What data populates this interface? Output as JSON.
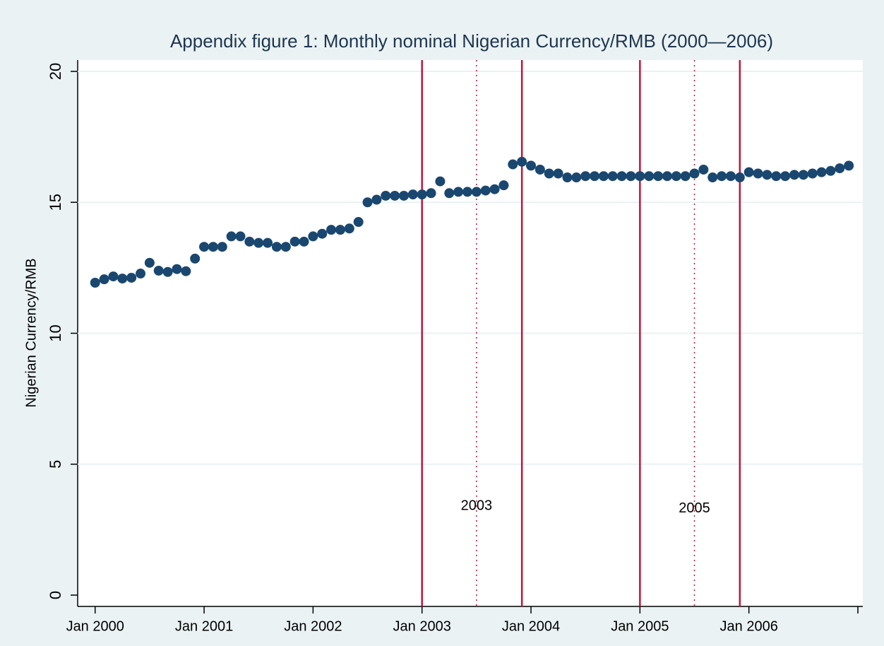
{
  "chart_data": {
    "type": "scatter",
    "title": "Appendix figure 1: Monthly nominal Nigerian Currency/RMB (2000—2006)",
    "y_label": "Nigerian Currency/RMB",
    "color": "#1a476f",
    "x": [
      "2000-01",
      "2000-02",
      "2000-03",
      "2000-04",
      "2000-05",
      "2000-06",
      "2000-07",
      "2000-08",
      "2000-09",
      "2000-10",
      "2000-11",
      "2000-12",
      "2001-01",
      "2001-02",
      "2001-03",
      "2001-04",
      "2001-05",
      "2001-06",
      "2001-07",
      "2001-08",
      "2001-09",
      "2001-10",
      "2001-11",
      "2001-12",
      "2002-01",
      "2002-02",
      "2002-03",
      "2002-04",
      "2002-05",
      "2002-06",
      "2002-07",
      "2002-08",
      "2002-09",
      "2002-10",
      "2002-11",
      "2002-12",
      "2003-01",
      "2003-02",
      "2003-03",
      "2003-04",
      "2003-05",
      "2003-06",
      "2003-07",
      "2003-08",
      "2003-09",
      "2003-10",
      "2003-11",
      "2003-12",
      "2004-01",
      "2004-02",
      "2004-03",
      "2004-04",
      "2004-05",
      "2004-06",
      "2004-07",
      "2004-08",
      "2004-09",
      "2004-10",
      "2004-11",
      "2004-12",
      "2005-01",
      "2005-02",
      "2005-03",
      "2005-04",
      "2005-05",
      "2005-06",
      "2005-07",
      "2005-08",
      "2005-09",
      "2005-10",
      "2005-11",
      "2005-12",
      "2006-01",
      "2006-02",
      "2006-03",
      "2006-04",
      "2006-05",
      "2006-06",
      "2006-07",
      "2006-08",
      "2006-09",
      "2006-10",
      "2006-11",
      "2006-12"
    ],
    "values": [
      11.93,
      12.06,
      12.17,
      12.09,
      12.12,
      12.28,
      12.69,
      12.39,
      12.34,
      12.45,
      12.37,
      12.85,
      13.3,
      13.3,
      13.3,
      13.7,
      13.7,
      13.5,
      13.45,
      13.45,
      13.3,
      13.3,
      13.5,
      13.5,
      13.7,
      13.8,
      13.95,
      13.95,
      14.0,
      14.25,
      15.0,
      15.1,
      15.25,
      15.25,
      15.25,
      15.3,
      15.3,
      15.35,
      15.8,
      15.35,
      15.4,
      15.4,
      15.4,
      15.45,
      15.5,
      15.65,
      16.45,
      16.55,
      16.4,
      16.25,
      16.1,
      16.1,
      15.95,
      15.95,
      16.0,
      16.0,
      16.0,
      16.0,
      16.0,
      16.0,
      16.0,
      16.0,
      16.0,
      16.0,
      16.0,
      16.0,
      16.1,
      16.25,
      15.95,
      16.0,
      16.0,
      15.95,
      16.15,
      16.1,
      16.05,
      16.0,
      16.0,
      16.05,
      16.05,
      16.1,
      16.15,
      16.2,
      16.3,
      16.4
    ],
    "xlim": [
      "1999-11",
      "2007-01"
    ],
    "xticks": [
      {
        "value": "2000-01",
        "label": "Jan 2000"
      },
      {
        "value": "2001-01",
        "label": "Jan 2001"
      },
      {
        "value": "2002-01",
        "label": "Jan 2002"
      },
      {
        "value": "2003-01",
        "label": "Jan 2003"
      },
      {
        "value": "2004-01",
        "label": "Jan 2004"
      },
      {
        "value": "2005-01",
        "label": "Jan 2005"
      },
      {
        "value": "2006-01",
        "label": "Jan 2006"
      },
      {
        "value": "2007-01",
        "label": null
      }
    ],
    "ylim": [
      0,
      20
    ],
    "yticks": [
      0,
      5,
      10,
      15,
      20
    ],
    "grid": true,
    "reference_lines": [
      {
        "x": "2003-01",
        "style": "solid",
        "color": "#c0143c"
      },
      {
        "x": "2003-07",
        "style": "dotted",
        "color": "#c0143c"
      },
      {
        "x": "2003-12",
        "style": "solid",
        "color": "#c0143c"
      },
      {
        "x": "2005-01",
        "style": "solid",
        "color": "#c0143c"
      },
      {
        "x": "2005-07",
        "style": "dotted",
        "color": "#c0143c"
      },
      {
        "x": "2005-12",
        "style": "solid",
        "color": "#c0143c"
      }
    ],
    "annotations": [
      {
        "text": "2003",
        "x": "2003-07",
        "y": 3.4
      },
      {
        "text": "2005",
        "x": "2005-07",
        "y": 3.3
      }
    ]
  }
}
